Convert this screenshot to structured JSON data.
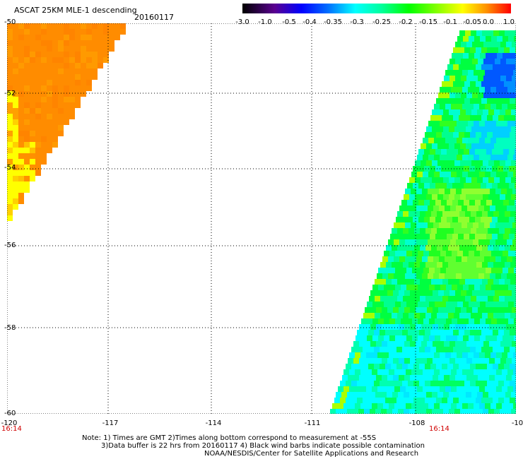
{
  "header": {
    "title": "ASCAT 25KM MLE-1 descending",
    "date": "20160117"
  },
  "colorbar": {
    "labels": [
      "-3.0",
      "-1.0",
      "-0.5",
      "-0.4",
      "-0.35",
      "-0.3",
      "-0.25",
      "-0.2",
      "-0.15",
      "-0.1",
      "-0.05",
      "0.0",
      "1.0"
    ],
    "colors": [
      "#000000",
      "#5a0090",
      "#0000ff",
      "#0060ff",
      "#00b0ff",
      "#00ffff",
      "#00ff9a",
      "#00ff00",
      "#80ff00",
      "#ffff00",
      "#ffc000",
      "#ff8000",
      "#ff0000"
    ]
  },
  "map": {
    "lat_labels": [
      "-50",
      "-52",
      "-54",
      "-56",
      "-58",
      "-60"
    ],
    "lon_labels": [
      "-120",
      "-117",
      "-114",
      "-111",
      "-108",
      "-10"
    ],
    "times": [
      "16:14",
      "16:14"
    ]
  },
  "notes": {
    "line1": "Note: 1) Times are GMT 2)Times along bottom correspond to measurement at -55S",
    "line2": "3)Data buffer is 22 hrs from 20160117 4) Black wind barbs indicate possible contamination",
    "line3": "NOAA/NESDIS/Center for Satellite Applications and Research"
  }
}
